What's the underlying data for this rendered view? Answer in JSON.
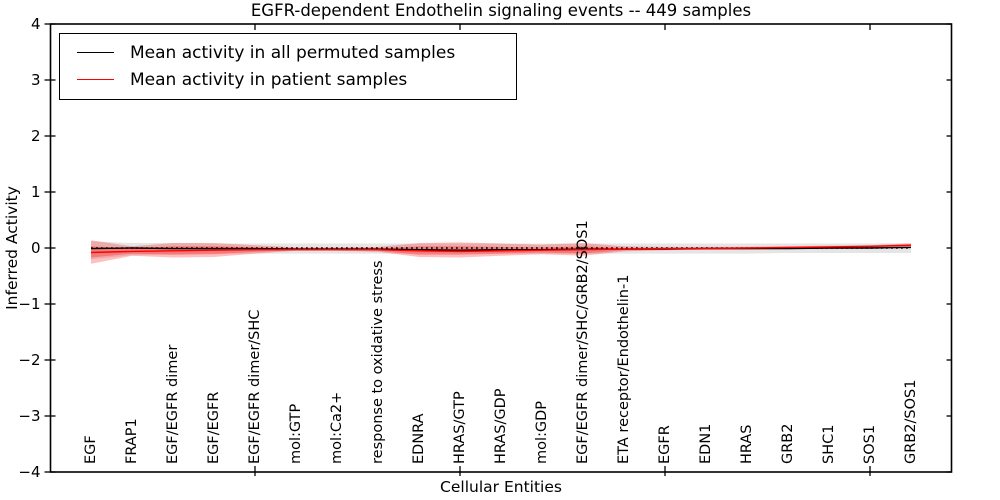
{
  "chart_data": {
    "type": "line",
    "title": "EGFR-dependent Endothelin signaling events -- 449 samples",
    "xlabel": "Cellular Entities",
    "ylabel": "Inferred Activity",
    "ylim": [
      -4,
      4
    ],
    "yticks": [
      4,
      3,
      2,
      1,
      0,
      -1,
      -2,
      -3,
      -4
    ],
    "x_axis_tick_indices": [
      4,
      9,
      14,
      19
    ],
    "grid": false,
    "legend_position": "upper left",
    "legend": [
      {
        "label": "Mean activity in all permuted samples",
        "color": "#000000"
      },
      {
        "label": "Mean activity in patient samples",
        "color": "#ff0000"
      }
    ],
    "categories": [
      "EGF",
      "FRAP1",
      "EGF/EGFR dimer",
      "EGF/EGFR",
      "EGF/EGFR dimer/SHC",
      "mol:GTP",
      "mol:Ca2+",
      "response to oxidative stress",
      "EDNRA",
      "HRAS/GTP",
      "HRAS/GDP",
      "mol:GDP",
      "EGF/EGFR dimer/SHC/GRB2/SOS1",
      "ETA receptor/Endothelin-1",
      "EGFR",
      "EDN1",
      "HRAS",
      "GRB2",
      "SHC1",
      "SOS1",
      "GRB2/SOS1"
    ],
    "series": [
      {
        "name": "permuted-mean",
        "color": "#000000",
        "style": "solid",
        "values": [
          -0.01,
          0.0,
          -0.01,
          -0.01,
          -0.01,
          -0.02,
          -0.02,
          -0.02,
          -0.03,
          -0.04,
          -0.03,
          -0.03,
          -0.02,
          -0.02,
          -0.02,
          -0.01,
          -0.01,
          -0.01,
          0.0,
          0.0,
          0.01
        ]
      },
      {
        "name": "permuted-median",
        "color": "#000000",
        "style": "dotted",
        "values": [
          0,
          0,
          0,
          0,
          0,
          0,
          0,
          0,
          0,
          0,
          0,
          0,
          0,
          0,
          0,
          0,
          0,
          0,
          0,
          0,
          0
        ]
      },
      {
        "name": "patient-mean",
        "color": "#ff0000",
        "style": "solid",
        "values": [
          -0.08,
          -0.06,
          -0.05,
          -0.04,
          -0.03,
          -0.03,
          -0.03,
          -0.03,
          -0.05,
          -0.06,
          -0.05,
          -0.04,
          -0.03,
          -0.02,
          -0.01,
          -0.01,
          0.0,
          0.01,
          0.02,
          0.03,
          0.05
        ]
      }
    ],
    "bands": [
      {
        "name": "permuted-range",
        "color": "#000000",
        "opacity": 0.1,
        "upper": [
          0.12,
          0.09,
          0.09,
          0.08,
          0.08,
          0.08,
          0.08,
          0.08,
          0.08,
          0.08,
          0.08,
          0.08,
          0.08,
          0.08,
          0.08,
          0.08,
          0.08,
          0.08,
          0.08,
          0.08,
          0.09
        ],
        "lower": [
          -0.2,
          -0.13,
          -0.11,
          -0.1,
          -0.1,
          -0.1,
          -0.1,
          -0.1,
          -0.1,
          -0.1,
          -0.1,
          -0.1,
          -0.1,
          -0.1,
          -0.1,
          -0.1,
          -0.1,
          -0.09,
          -0.09,
          -0.09,
          -0.09
        ]
      },
      {
        "name": "patient-range-outer",
        "color": "#ff0000",
        "opacity": 0.25,
        "upper": [
          0.14,
          0.03,
          0.09,
          0.09,
          0.05,
          0.01,
          0.01,
          0.02,
          0.09,
          0.1,
          0.08,
          0.06,
          0.09,
          0.03,
          0.02,
          0.02,
          0.02,
          0.03,
          0.04,
          0.05,
          0.08
        ],
        "lower": [
          -0.28,
          -0.14,
          -0.17,
          -0.16,
          -0.1,
          -0.05,
          -0.05,
          -0.07,
          -0.16,
          -0.17,
          -0.14,
          -0.11,
          -0.14,
          -0.06,
          -0.04,
          -0.03,
          -0.03,
          -0.02,
          -0.02,
          -0.01,
          0.02
        ]
      },
      {
        "name": "patient-range-inner",
        "color": "#ff0000",
        "opacity": 0.28,
        "upper": [
          0.03,
          -0.01,
          0.03,
          0.03,
          0.01,
          -0.01,
          -0.01,
          -0.01,
          0.03,
          0.03,
          0.02,
          0.01,
          0.03,
          0.0,
          0.0,
          0.01,
          0.01,
          0.01,
          0.02,
          0.03,
          0.06
        ],
        "lower": [
          -0.17,
          -0.1,
          -0.12,
          -0.11,
          -0.07,
          -0.04,
          -0.04,
          -0.05,
          -0.12,
          -0.12,
          -0.1,
          -0.08,
          -0.1,
          -0.04,
          -0.03,
          -0.02,
          -0.02,
          -0.01,
          0.0,
          0.01,
          0.03
        ]
      }
    ]
  }
}
